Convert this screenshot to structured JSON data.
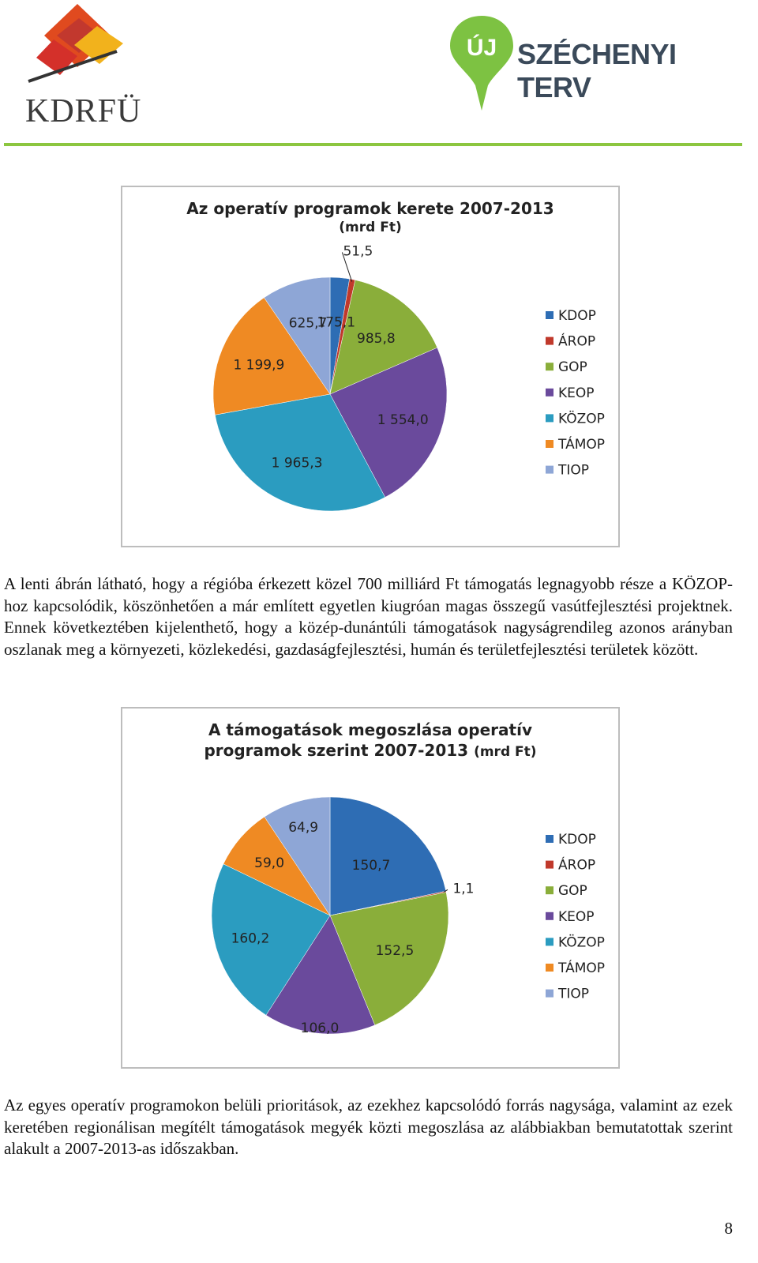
{
  "header": {
    "left_logo_text": "KDRFÜ",
    "right_logo_badge": "ÚJ",
    "right_logo_text": "SZÉCHENYI TERV"
  },
  "chart_data": [
    {
      "type": "pie",
      "title": "Az operatív programok kerete 2007-2013",
      "subtitle": "(mrd Ft)",
      "categories": [
        "KDOP",
        "ÁROP",
        "GOP",
        "KEOP",
        "KÖZOP",
        "TÁMOP",
        "TIOP"
      ],
      "values": [
        175.1,
        51.5,
        985.8,
        1554.0,
        1965.3,
        1199.9,
        625.7
      ],
      "labels": [
        "175,1",
        "51,5",
        "985,8",
        "1 554,0",
        "1 965,3",
        "1 199,9",
        "625,7"
      ],
      "colors": [
        "#2e6db4",
        "#c0392b",
        "#8aae3a",
        "#6a4a9c",
        "#2b9cc0",
        "#ef8a23",
        "#8ea6d6"
      ],
      "legend": "right"
    },
    {
      "type": "pie",
      "title": "A támogatások megoszlása operatív",
      "subtitle": "programok szerint 2007-2013",
      "unit": "(mrd Ft)",
      "categories": [
        "KDOP",
        "ÁROP",
        "GOP",
        "KEOP",
        "KÖZOP",
        "TÁMOP",
        "TIOP"
      ],
      "values": [
        150.7,
        1.1,
        152.5,
        106.0,
        160.2,
        59.0,
        64.9
      ],
      "labels": [
        "150,7",
        "1,1",
        "152,5",
        "106,0",
        "160,2",
        "59,0",
        "64,9"
      ],
      "colors": [
        "#2e6db4",
        "#c0392b",
        "#8aae3a",
        "#6a4a9c",
        "#2b9cc0",
        "#ef8a23",
        "#8ea6d6"
      ],
      "legend": "right"
    }
  ],
  "text": {
    "para1": "A lenti ábrán látható, hogy a régióba érkezett közel 700 milliárd Ft támogatás legnagyobb része a KÖZOP-hoz kapcsolódik, köszönhetően a már említett egyetlen kiugróan magas összegű vasútfejlesztési projektnek. Ennek következtében kijelenthető, hogy a közép-dunántúli támogatások nagyságrendileg azonos arányban oszlanak meg a környezeti, közlekedési, gazdaságfejlesztési, humán és területfejlesztési területek között.",
    "para2": "Az egyes operatív programokon belüli prioritások, az ezekhez kapcsolódó forrás nagysága, valamint az ezek keretében regionálisan megítélt támogatások megyék közti megoszlása az alábbiakban bemutatottak szerint alakult a 2007-2013-as időszakban.",
    "page_number": "8"
  }
}
